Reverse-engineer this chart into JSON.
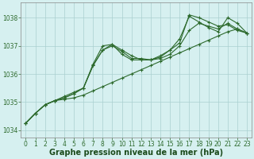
{
  "line1": {
    "x": [
      0,
      1,
      2,
      3,
      4,
      5,
      6,
      7,
      8,
      9,
      10,
      11,
      12,
      13,
      14,
      15,
      16,
      17,
      18,
      19,
      20,
      21,
      22,
      23
    ],
    "y": [
      1034.25,
      1034.6,
      1034.9,
      1035.05,
      1035.1,
      1035.15,
      1035.25,
      1035.4,
      1035.55,
      1035.7,
      1035.85,
      1036.0,
      1036.15,
      1036.3,
      1036.45,
      1036.6,
      1036.75,
      1036.9,
      1037.05,
      1037.2,
      1037.35,
      1037.5,
      1037.6,
      1037.45
    ]
  },
  "line2": {
    "x": [
      0,
      1,
      2,
      3,
      4,
      5,
      6,
      7,
      8,
      9,
      10,
      11,
      12,
      13,
      14,
      15,
      16,
      17,
      18,
      19,
      20,
      21,
      22,
      23
    ],
    "y": [
      1034.25,
      1034.6,
      1034.9,
      1035.05,
      1035.15,
      1035.3,
      1035.5,
      1036.3,
      1036.85,
      1037.05,
      1036.85,
      1036.65,
      1036.5,
      1036.5,
      1036.55,
      1036.7,
      1037.0,
      1037.55,
      1037.8,
      1037.7,
      1037.6,
      1037.8,
      1037.6,
      1037.45
    ]
  },
  "line3": {
    "x": [
      0,
      1,
      2,
      3,
      4,
      5,
      6,
      7,
      8,
      9,
      10,
      11,
      12,
      13,
      14,
      15,
      16,
      17,
      18,
      19,
      20,
      21,
      22,
      23
    ],
    "y": [
      1034.25,
      1034.6,
      1034.9,
      1035.05,
      1035.15,
      1035.3,
      1035.5,
      1036.35,
      1037.0,
      1037.05,
      1036.7,
      1036.5,
      1036.5,
      1036.5,
      1036.6,
      1036.85,
      1037.1,
      1038.1,
      1038.0,
      1037.85,
      1037.7,
      1037.75,
      1037.55,
      1037.45
    ]
  },
  "line4": {
    "x": [
      0,
      1,
      2,
      3,
      4,
      5,
      6,
      7,
      8,
      9,
      10,
      11,
      12,
      13,
      14,
      15,
      16,
      17,
      18,
      19,
      20,
      21,
      22,
      23
    ],
    "y": [
      1034.25,
      1034.6,
      1034.9,
      1035.05,
      1035.2,
      1035.35,
      1035.5,
      1036.3,
      1036.85,
      1037.0,
      1036.8,
      1036.55,
      1036.55,
      1036.5,
      1036.65,
      1036.85,
      1037.25,
      1038.05,
      1037.85,
      1037.65,
      1037.5,
      1038.0,
      1037.8,
      1037.45
    ]
  },
  "line_color": "#2d6a2d",
  "marker": "+",
  "marker_size": 3.5,
  "bg_color": "#d6f0f0",
  "grid_color": "#aacfcf",
  "xlabel": "Graphe pression niveau de la mer (hPa)",
  "xlabel_color": "#1a4a1a",
  "ylabel_ticks": [
    1034,
    1035,
    1036,
    1037,
    1038
  ],
  "xlim": [
    -0.5,
    23.5
  ],
  "ylim": [
    1033.75,
    1038.55
  ],
  "xticks": [
    0,
    1,
    2,
    3,
    4,
    5,
    6,
    7,
    8,
    9,
    10,
    11,
    12,
    13,
    14,
    15,
    16,
    17,
    18,
    19,
    20,
    21,
    22,
    23
  ],
  "tick_fontsize": 5.5,
  "xlabel_fontsize": 7,
  "lw": 0.8
}
